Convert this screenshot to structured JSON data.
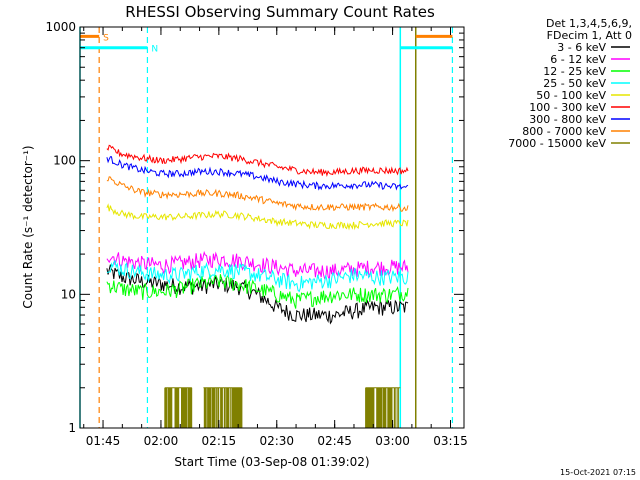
{
  "chart_data": {
    "type": "line",
    "title": "RHESSI Observing Summary Count Rates",
    "xlabel": "Start Time (03-Sep-08 01:39:02)",
    "ylabel": "Count Rate (s⁻¹ detector⁻¹)",
    "y_scale": "log",
    "ylim": [
      1,
      1000
    ],
    "xlim": [
      "01:39:02",
      "03:18:30"
    ],
    "x_ticks": [
      "01:45",
      "02:00",
      "02:15",
      "02:30",
      "02:45",
      "03:00",
      "03:15"
    ],
    "y_ticks": [
      "1",
      "10",
      "100",
      "1000"
    ],
    "legend_placement": "right",
    "legend_header": [
      "Det 1,3,4,5,6,9,",
      "FDecim 1, Att 0"
    ],
    "x": [
      "01:46",
      "01:50",
      "01:55",
      "02:00",
      "02:05",
      "02:10",
      "02:15",
      "02:20",
      "02:25",
      "02:30",
      "02:35",
      "02:40",
      "02:45",
      "02:50",
      "02:55",
      "03:00",
      "03:04"
    ],
    "series": [
      {
        "name": "3 - 6 keV",
        "color": "#000000",
        "values": [
          15,
          13.5,
          12.5,
          12,
          11.5,
          11.5,
          12,
          11.5,
          10,
          8,
          7,
          7,
          7,
          7.5,
          8,
          8,
          8
        ]
      },
      {
        "name": "6 - 12 keV",
        "color": "#ff00ff",
        "values": [
          20,
          18,
          17,
          16.5,
          17,
          18,
          18.5,
          18,
          17,
          16,
          15,
          15,
          15,
          15.5,
          16,
          16,
          16
        ]
      },
      {
        "name": "12 - 25 keV",
        "color": "#00ff00",
        "values": [
          12,
          11,
          10.5,
          10.5,
          11,
          12,
          12.5,
          12,
          11,
          10,
          9,
          9.5,
          10,
          10,
          10,
          10,
          10.5
        ]
      },
      {
        "name": "25 - 50 keV",
        "color": "#00ffff",
        "values": [
          17,
          15.5,
          14.5,
          14,
          14,
          15,
          15.5,
          15,
          14,
          13,
          12,
          12.5,
          13,
          14,
          13.5,
          13.5,
          13.5
        ]
      },
      {
        "name": "50 - 100 keV",
        "color": "#e6e600",
        "values": [
          45,
          40,
          38,
          38,
          38,
          39,
          40,
          39,
          37,
          35,
          34,
          33,
          33,
          33,
          34,
          34,
          34
        ]
      },
      {
        "name": "100 - 300 keV",
        "color": "#ff0000",
        "values": [
          125,
          112,
          105,
          100,
          103,
          107,
          108,
          104,
          97,
          90,
          85,
          82,
          82,
          84,
          85,
          84,
          84
        ]
      },
      {
        "name": "300 - 800 keV",
        "color": "#0000ff",
        "values": [
          105,
          93,
          85,
          80,
          80,
          83,
          83,
          80,
          76,
          70,
          67,
          65,
          65,
          66,
          66,
          64,
          63
        ]
      },
      {
        "name": "800 - 7000 keV",
        "color": "#ff8000",
        "values": [
          75,
          65,
          58,
          56,
          56,
          57,
          57,
          55,
          52,
          48,
          46,
          45,
          45,
          45,
          45,
          45,
          44
        ]
      },
      {
        "name": "7000 - 15000 keV",
        "color": "#808000",
        "values": [
          null,
          null,
          null,
          null,
          null,
          null,
          null,
          null,
          null,
          null,
          null,
          null,
          null,
          null,
          null,
          null,
          null
        ]
      }
    ],
    "high_energy_spikes": {
      "name": "7000 - 15000 keV",
      "level": 2,
      "ranges": [
        [
          "02:01",
          "02:08"
        ],
        [
          "02:11",
          "02:21"
        ],
        [
          "02:53",
          "03:02"
        ]
      ]
    },
    "markers": [
      {
        "label": "S",
        "time": "01:44:00",
        "color": "#ff8000",
        "style": "dashed"
      },
      {
        "label": "N",
        "time": "01:56:30",
        "color": "#00ffff",
        "style": "dashed"
      },
      {
        "time": "03:15:30",
        "color": "#00ffff",
        "style": "dashed"
      }
    ],
    "timeline_bars": [
      {
        "label": "S",
        "from": "01:39:02",
        "to": "01:44:00",
        "color": "#ff8000",
        "level": 850
      },
      {
        "label": "N",
        "from": "01:39:02",
        "to": "01:56:30",
        "color": "#00ffff",
        "level": 700
      },
      {
        "from": "03:02:00",
        "to": "03:15:30",
        "color": "#00ffff",
        "level": 700
      },
      {
        "from": "03:06:00",
        "to": "03:15:30",
        "color": "#ff8000",
        "level": 850
      }
    ],
    "boundary_lines": [
      {
        "time": "01:39:02",
        "color": "#00ffff"
      },
      {
        "time": "03:02:00",
        "color": "#00ffff"
      },
      {
        "time": "03:06:00",
        "color": "#808000"
      }
    ]
  },
  "footer": {
    "timestamp": "15-Oct-2021 07:15"
  }
}
